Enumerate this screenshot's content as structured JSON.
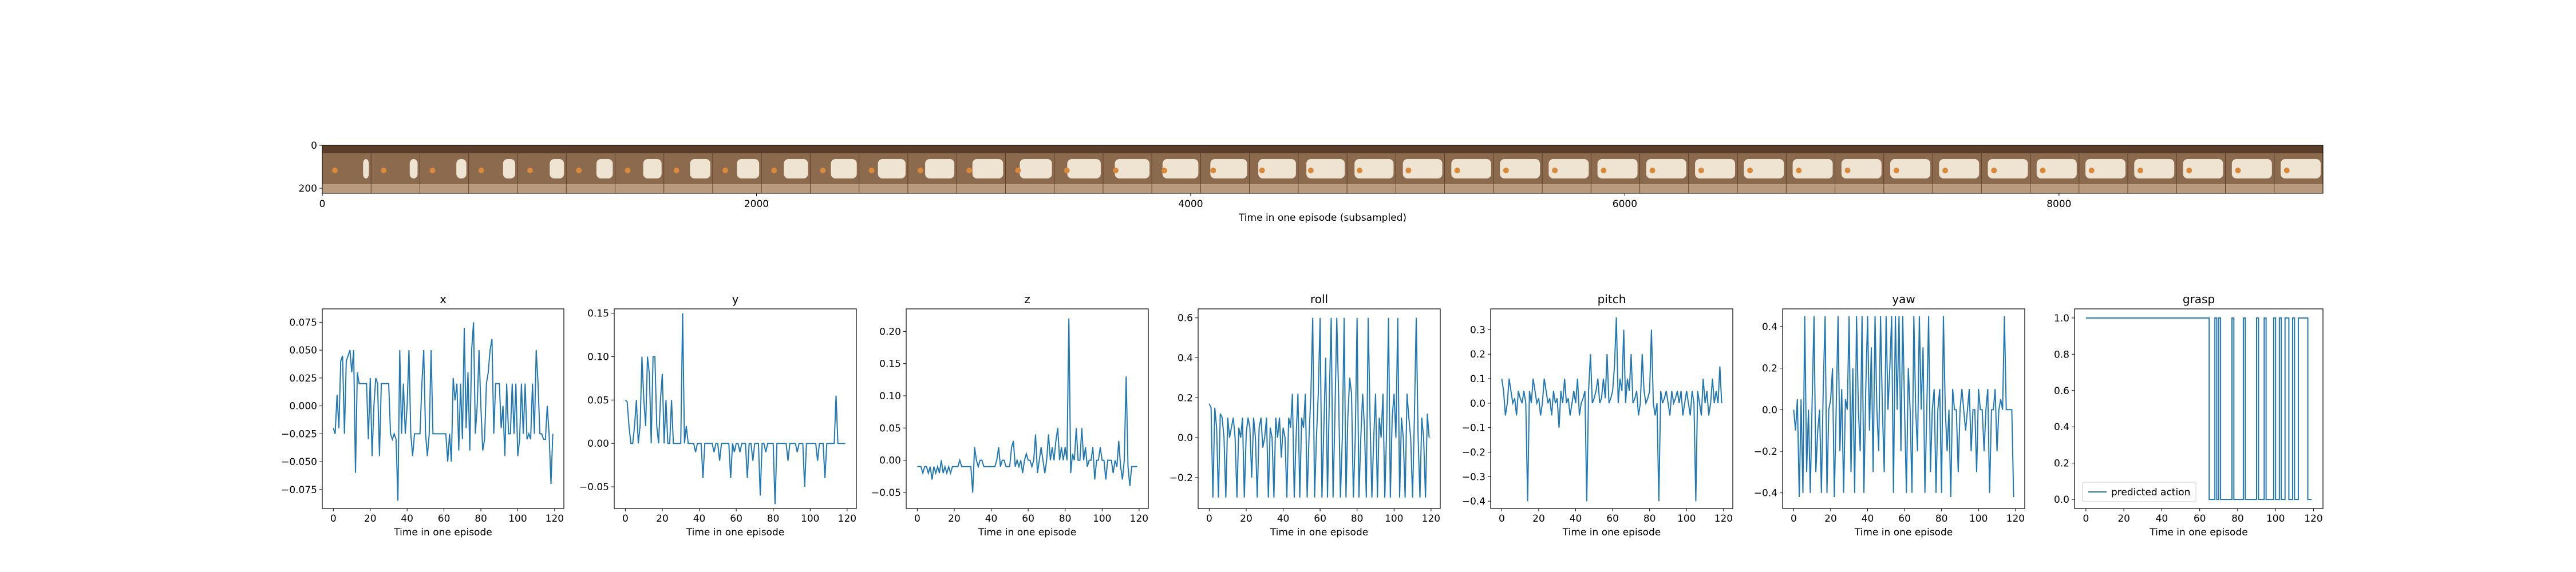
{
  "colors": {
    "line": "#1f77b4",
    "axes": "#000000",
    "background": "#ffffff",
    "strip_dark": "#5a3e2a",
    "strip_mid": "#8b6a4e",
    "strip_arm": "#efe4d2",
    "strip_light": "#b89b7e"
  },
  "chart_data": [
    {
      "type": "image",
      "name": "strip",
      "xlabel": "Time in one episode (subsampled)",
      "xlim": [
        0,
        9216
      ],
      "ylim": [
        0,
        224
      ],
      "xticks": [
        0,
        2000,
        4000,
        6000,
        8000
      ],
      "yticks": [
        0,
        200
      ],
      "frames": 41,
      "description_note": ""
    },
    {
      "type": "line",
      "name": "x",
      "title": "x",
      "xlabel": "Time in one episode",
      "xlim": [
        -6,
        125
      ],
      "ylim": [
        -0.092,
        0.087
      ],
      "xticks": [
        0,
        20,
        40,
        60,
        80,
        100,
        120
      ],
      "yticks": [
        -0.075,
        -0.05,
        -0.025,
        0.0,
        0.025,
        0.05,
        0.075
      ],
      "ytick_labels": [
        "−0.075",
        "−0.050",
        "−0.025",
        "0.000",
        "0.025",
        "0.050",
        "0.075"
      ],
      "series": [
        {
          "values": [
            -0.02,
            -0.025,
            0.01,
            -0.02,
            0.04,
            0.045,
            -0.025,
            0.04,
            0.045,
            0.05,
            0.03,
            0.05,
            -0.06,
            0.03,
            0.02,
            0.02,
            0.02,
            0.02,
            0.02,
            -0.03,
            0.025,
            -0.045,
            0.0,
            0.025,
            0.02,
            -0.045,
            0.02,
            0.02,
            0.02,
            0.02,
            0.02,
            -0.025,
            -0.03,
            -0.025,
            -0.03,
            -0.085,
            0.05,
            -0.025,
            0.02,
            -0.025,
            0.0,
            0.05,
            -0.025,
            -0.045,
            -0.025,
            -0.025,
            -0.025,
            -0.025,
            0.02,
            0.05,
            -0.025,
            -0.045,
            -0.025,
            0.05,
            -0.025,
            -0.025,
            -0.025,
            -0.025,
            -0.025,
            -0.025,
            -0.025,
            -0.025,
            -0.05,
            -0.025,
            -0.05,
            0.025,
            0.005,
            0.02,
            -0.04,
            0.02,
            -0.03,
            0.07,
            -0.02,
            0.03,
            -0.04,
            0.05,
            0.075,
            -0.025,
            0.0,
            0.05,
            0.0,
            -0.04,
            -0.03,
            0.02,
            0.03,
            0.05,
            0.06,
            -0.025,
            0.02,
            0.02,
            0.02,
            -0.02,
            0.0,
            -0.045,
            0.02,
            -0.025,
            -0.025,
            0.02,
            -0.025,
            0.02,
            -0.045,
            -0.03,
            0.02,
            -0.025,
            0.02,
            -0.03,
            -0.025,
            -0.03,
            0.02,
            -0.025,
            0.05,
            0.02,
            -0.025,
            -0.025,
            -0.03,
            -0.03,
            0.0,
            -0.025,
            -0.07,
            -0.025
          ]
        }
      ]
    },
    {
      "type": "line",
      "name": "y",
      "title": "y",
      "xlabel": "Time in one episode",
      "xlim": [
        -6,
        125
      ],
      "ylim": [
        -0.075,
        0.155
      ],
      "xticks": [
        0,
        20,
        40,
        60,
        80,
        100,
        120
      ],
      "yticks": [
        -0.05,
        0.0,
        0.05,
        0.1,
        0.15
      ],
      "ytick_labels": [
        "−0.05",
        "0.00",
        "0.05",
        "0.10",
        "0.15"
      ],
      "series": [
        {
          "values": [
            0.05,
            0.048,
            0.02,
            0.0,
            0.0,
            0.02,
            0.05,
            0.0,
            0.02,
            0.1,
            0.05,
            0.02,
            0.1,
            0.08,
            0.0,
            0.1,
            0.1,
            0.02,
            0.0,
            0.05,
            0.08,
            0.0,
            0.05,
            0.0,
            0.0,
            0.05,
            0.0,
            0.0,
            0.0,
            0.0,
            0.0,
            0.15,
            0.0,
            0.02,
            0.0,
            0.0,
            0.0,
            0.0,
            -0.01,
            0.0,
            0.0,
            0.0,
            -0.04,
            0.0,
            0.0,
            0.0,
            0.0,
            0.0,
            -0.01,
            0.0,
            0.0,
            -0.02,
            0.0,
            0.0,
            0.0,
            0.0,
            0.0,
            -0.04,
            0.0,
            -0.01,
            0.0,
            0.0,
            -0.01,
            0.0,
            0.0,
            0.0,
            -0.04,
            0.0,
            0.0,
            -0.02,
            0.0,
            0.0,
            0.0,
            -0.06,
            0.0,
            0.0,
            -0.01,
            0.0,
            0.0,
            0.0,
            0.0,
            -0.07,
            0.0,
            0.0,
            0.0,
            0.0,
            0.0,
            0.0,
            -0.02,
            0.0,
            0.0,
            0.0,
            0.0,
            -0.01,
            0.0,
            0.0,
            0.0,
            -0.05,
            0.0,
            0.0,
            0.0,
            0.0,
            0.0,
            0.0,
            -0.02,
            0.0,
            0.0,
            0.0,
            -0.04,
            0.0,
            0.0,
            0.0,
            0.0,
            0.0,
            0.055,
            0.0,
            0.0,
            0.0,
            0.0,
            0.0
          ]
        }
      ]
    },
    {
      "type": "line",
      "name": "z",
      "title": "z",
      "xlabel": "Time in one episode",
      "xlim": [
        -6,
        125
      ],
      "ylim": [
        -0.075,
        0.235
      ],
      "xticks": [
        0,
        20,
        40,
        60,
        80,
        100,
        120
      ],
      "yticks": [
        -0.05,
        0.0,
        0.05,
        0.1,
        0.15,
        0.2
      ],
      "ytick_labels": [
        "−0.05",
        "0.00",
        "0.05",
        "0.10",
        "0.15",
        "0.20"
      ],
      "series": [
        {
          "values": [
            -0.01,
            -0.01,
            -0.01,
            -0.02,
            -0.01,
            -0.01,
            -0.02,
            -0.01,
            -0.03,
            -0.01,
            -0.02,
            -0.01,
            -0.02,
            0.0,
            -0.02,
            -0.01,
            -0.02,
            -0.01,
            -0.02,
            -0.01,
            -0.01,
            -0.01,
            -0.01,
            0.0,
            -0.01,
            -0.01,
            -0.01,
            -0.01,
            -0.01,
            -0.01,
            -0.05,
            0.02,
            0.0,
            -0.01,
            0.0,
            0.0,
            -0.01,
            -0.01,
            -0.01,
            -0.01,
            -0.01,
            -0.01,
            -0.01,
            0.0,
            0.02,
            -0.01,
            0.0,
            0.0,
            -0.01,
            -0.01,
            -0.01,
            0.02,
            0.03,
            -0.01,
            0.0,
            -0.01,
            0.0,
            -0.02,
            0.0,
            0.01,
            0.0,
            0.0,
            -0.01,
            0.0,
            0.04,
            -0.02,
            0.0,
            0.02,
            0.0,
            -0.02,
            0.0,
            0.04,
            0.0,
            0.02,
            0.0,
            0.03,
            0.05,
            0.0,
            0.02,
            0.0,
            0.02,
            0.0,
            0.22,
            -0.02,
            0.01,
            0.0,
            0.05,
            0.0,
            0.0,
            0.05,
            0.0,
            0.02,
            -0.01,
            0.0,
            0.0,
            0.02,
            -0.03,
            0.0,
            0.0,
            0.02,
            0.0,
            0.0,
            -0.03,
            0.0,
            0.0,
            0.0,
            -0.02,
            0.0,
            -0.01,
            0.03,
            -0.01,
            -0.03,
            0.0,
            0.13,
            -0.01,
            -0.04,
            -0.01,
            -0.01,
            -0.01,
            -0.01
          ]
        }
      ]
    },
    {
      "type": "line",
      "name": "roll",
      "title": "roll",
      "xlabel": "Time in one episode",
      "xlim": [
        -6,
        125
      ],
      "ylim": [
        -0.355,
        0.645
      ],
      "xticks": [
        0,
        20,
        40,
        60,
        80,
        100,
        120
      ],
      "yticks": [
        -0.2,
        0.0,
        0.2,
        0.4,
        0.6
      ],
      "ytick_labels": [
        "−0.2",
        "0.0",
        "0.2",
        "0.4",
        "0.6"
      ],
      "series": [
        {
          "values": [
            0.17,
            0.15,
            -0.3,
            0.15,
            0.05,
            -0.3,
            0.12,
            0.1,
            0.0,
            -0.3,
            0.1,
            0.0,
            0.05,
            0.1,
            0.0,
            -0.3,
            0.05,
            0.0,
            0.1,
            -0.3,
            0.02,
            0.1,
            0.05,
            -0.2,
            0.1,
            0.0,
            -0.3,
            0.05,
            0.1,
            -0.05,
            0.0,
            0.1,
            -0.3,
            0.05,
            0.0,
            -0.3,
            0.1,
            0.0,
            0.1,
            -0.1,
            0.05,
            0.0,
            -0.3,
            0.1,
            0.05,
            0.22,
            -0.3,
            0.0,
            0.22,
            -0.3,
            0.1,
            0.05,
            0.22,
            -0.3,
            0.0,
            0.22,
            0.6,
            -0.3,
            0.0,
            0.22,
            0.6,
            -0.3,
            0.05,
            0.4,
            -0.3,
            0.22,
            0.6,
            -0.3,
            0.1,
            0.6,
            0.22,
            -0.3,
            0.0,
            0.6,
            -0.3,
            0.1,
            0.3,
            0.22,
            -0.3,
            0.0,
            0.6,
            -0.3,
            0.0,
            0.22,
            0.05,
            -0.3,
            0.6,
            0.1,
            -0.3,
            0.0,
            0.22,
            -0.3,
            0.1,
            0.0,
            0.22,
            -0.3,
            0.05,
            0.6,
            -0.3,
            0.1,
            0.22,
            0.0,
            0.6,
            -0.3,
            0.1,
            0.0,
            -0.3,
            0.22,
            0.1,
            0.0,
            -0.3,
            0.1,
            0.6,
            0.0,
            -0.3,
            0.1,
            0.0,
            -0.3,
            0.12,
            0.0
          ]
        }
      ]
    },
    {
      "type": "line",
      "name": "pitch",
      "title": "pitch",
      "xlabel": "Time in one episode",
      "xlim": [
        -6,
        125
      ],
      "ylim": [
        -0.43,
        0.385
      ],
      "xticks": [
        0,
        20,
        40,
        60,
        80,
        100,
        120
      ],
      "yticks": [
        -0.4,
        -0.3,
        -0.2,
        -0.1,
        0.0,
        0.1,
        0.2,
        0.3
      ],
      "ytick_labels": [
        "−0.4",
        "−0.3",
        "−0.2",
        "−0.1",
        "0.0",
        "0.1",
        "0.2",
        "0.3"
      ],
      "series": [
        {
          "values": [
            0.1,
            0.05,
            -0.05,
            0.0,
            0.1,
            0.05,
            0.0,
            0.02,
            -0.05,
            0.05,
            0.02,
            0.0,
            0.05,
            0.0,
            -0.4,
            0.05,
            0.0,
            0.1,
            0.05,
            0.0,
            0.02,
            -0.05,
            0.0,
            0.1,
            0.05,
            0.0,
            0.02,
            -0.05,
            0.05,
            0.0,
            0.02,
            -0.1,
            0.05,
            0.0,
            0.1,
            0.0,
            0.02,
            -0.05,
            0.0,
            0.05,
            0.0,
            0.1,
            -0.05,
            0.0,
            0.02,
            0.05,
            -0.4,
            0.05,
            0.2,
            0.0,
            0.02,
            0.05,
            0.1,
            0.0,
            0.02,
            0.1,
            0.02,
            0.2,
            0.0,
            0.02,
            0.05,
            0.15,
            0.35,
            0.0,
            0.1,
            0.05,
            0.3,
            0.0,
            0.1,
            0.05,
            0.2,
            0.0,
            0.02,
            0.05,
            -0.05,
            0.0,
            0.2,
            0.05,
            0.0,
            0.02,
            0.05,
            0.3,
            0.0,
            -0.05,
            0.0,
            -0.4,
            0.05,
            0.0,
            0.02,
            0.05,
            0.0,
            -0.05,
            0.05,
            0.0,
            0.02,
            0.05,
            0.0,
            0.05,
            -0.05,
            0.0,
            0.05,
            0.0,
            -0.05,
            0.05,
            0.0,
            -0.4,
            0.05,
            0.0,
            -0.05,
            0.1,
            0.0,
            0.05,
            -0.05,
            0.0,
            0.1,
            0.0,
            0.05,
            0.0,
            0.15,
            0.0
          ]
        }
      ]
    },
    {
      "type": "line",
      "name": "yaw",
      "title": "yaw",
      "xlabel": "Time in one episode",
      "xlim": [
        -6,
        125
      ],
      "ylim": [
        -0.475,
        0.485
      ],
      "xticks": [
        0,
        20,
        40,
        60,
        80,
        100,
        120
      ],
      "yticks": [
        -0.4,
        -0.2,
        0.0,
        0.2,
        0.4
      ],
      "ytick_labels": [
        "−0.4",
        "−0.2",
        "0.0",
        "0.2",
        "0.4"
      ],
      "series": [
        {
          "values": [
            0.0,
            -0.1,
            0.05,
            -0.42,
            0.05,
            -0.4,
            0.45,
            -0.3,
            0.0,
            -0.4,
            0.05,
            0.45,
            -0.3,
            -0.1,
            0.0,
            -0.4,
            0.1,
            0.45,
            -0.4,
            0.0,
            0.05,
            0.2,
            -0.42,
            0.0,
            0.45,
            -0.2,
            0.1,
            -0.4,
            0.05,
            0.0,
            0.45,
            -0.3,
            0.2,
            -0.4,
            0.45,
            0.0,
            -0.2,
            0.45,
            -0.4,
            0.1,
            0.45,
            -0.1,
            0.3,
            -0.3,
            0.45,
            0.0,
            -0.2,
            0.45,
            0.0,
            -0.3,
            0.45,
            0.0,
            0.2,
            0.45,
            -0.4,
            0.45,
            0.0,
            0.45,
            -0.2,
            0.45,
            0.0,
            -0.4,
            0.2,
            0.0,
            -0.4,
            0.45,
            0.0,
            -0.2,
            0.45,
            0.0,
            0.3,
            -0.4,
            0.0,
            0.45,
            -0.3,
            0.0,
            0.1,
            -0.4,
            0.0,
            0.1,
            -0.4,
            0.45,
            0.0,
            -0.2,
            0.0,
            -0.42,
            0.1,
            0.0,
            0.0,
            -0.3,
            0.0,
            0.1,
            0.0,
            -0.1,
            0.0,
            0.1,
            -0.2,
            0.0,
            0.0,
            -0.3,
            0.1,
            0.0,
            0.0,
            -0.2,
            0.0,
            0.1,
            -0.4,
            0.0,
            0.0,
            0.1,
            -0.2,
            0.0,
            0.05,
            0.0,
            0.45,
            0.0,
            0.0,
            0.0,
            0.0,
            -0.42
          ]
        }
      ]
    },
    {
      "type": "line",
      "name": "grasp",
      "title": "grasp",
      "xlabel": "Time in one episode",
      "xlim": [
        -6,
        125
      ],
      "ylim": [
        -0.05,
        1.05
      ],
      "xticks": [
        0,
        20,
        40,
        60,
        80,
        100,
        120
      ],
      "yticks": [
        0.0,
        0.2,
        0.4,
        0.6,
        0.8,
        1.0
      ],
      "ytick_labels": [
        "0.0",
        "0.2",
        "0.4",
        "0.6",
        "0.8",
        "1.0"
      ],
      "legend": {
        "position": "lower-left",
        "label": "predicted action"
      },
      "series": [
        {
          "name": "predicted action",
          "values": [
            1,
            1,
            1,
            1,
            1,
            1,
            1,
            1,
            1,
            1,
            1,
            1,
            1,
            1,
            1,
            1,
            1,
            1,
            1,
            1,
            1,
            1,
            1,
            1,
            1,
            1,
            1,
            1,
            1,
            1,
            1,
            1,
            1,
            1,
            1,
            1,
            1,
            1,
            1,
            1,
            1,
            1,
            1,
            1,
            1,
            1,
            1,
            1,
            1,
            1,
            1,
            1,
            1,
            1,
            1,
            1,
            1,
            1,
            1,
            1,
            1,
            1,
            1,
            1,
            1,
            0,
            0,
            0,
            1,
            0,
            1,
            0,
            0,
            0,
            0,
            0,
            0,
            1,
            0,
            0,
            0,
            0,
            0,
            1,
            0,
            0,
            0,
            0,
            0,
            0,
            1,
            0,
            0,
            0,
            1,
            0,
            0,
            0,
            0,
            1,
            0,
            0,
            1,
            0,
            0,
            1,
            1,
            0,
            0,
            1,
            0,
            0,
            1,
            1,
            1,
            1,
            1,
            0,
            0,
            0
          ]
        }
      ]
    }
  ]
}
